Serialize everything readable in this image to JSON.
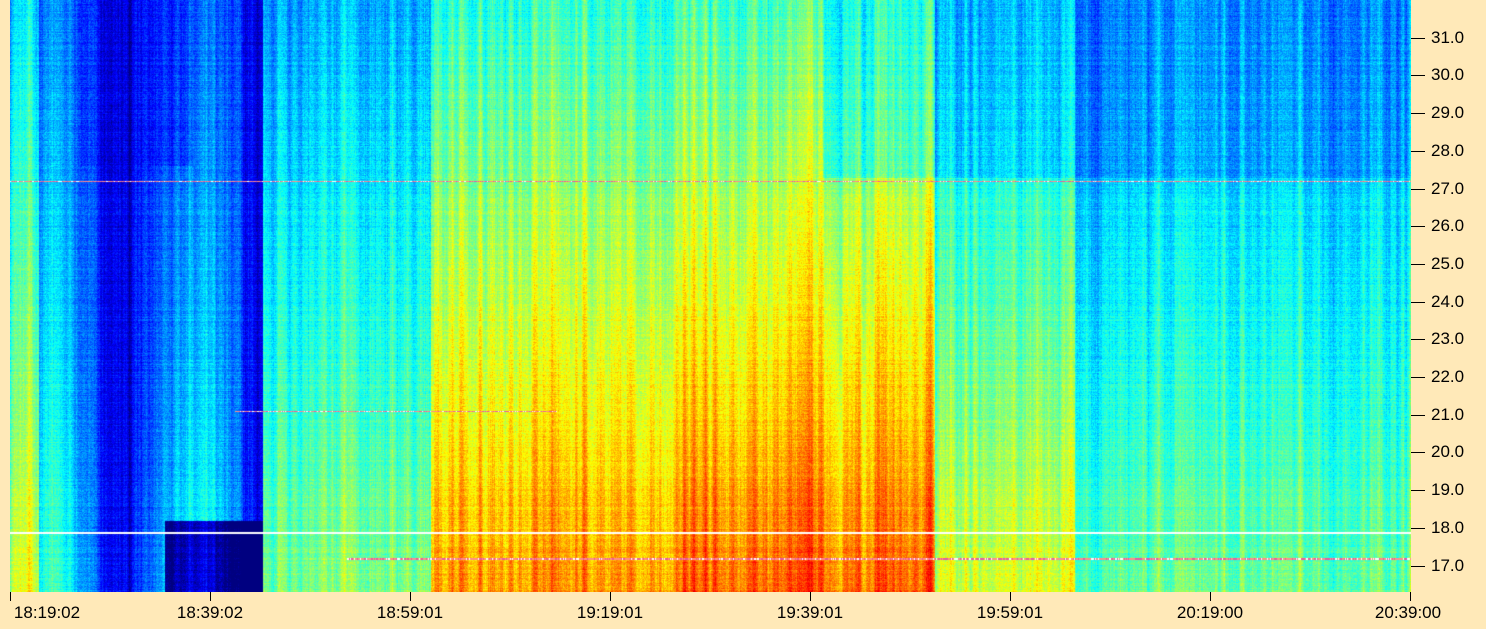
{
  "chart_data": {
    "type": "heatmap",
    "title": "",
    "xlabel": "",
    "ylabel": "",
    "x_ticks": [
      "18:19:02",
      "18:39:02",
      "18:59:01",
      "19:19:01",
      "19:39:01",
      "19:59:01",
      "20:19:00",
      "20:39:00"
    ],
    "y_ticks": [
      31.0,
      30.0,
      29.0,
      28.0,
      27.0,
      26.0,
      25.0,
      24.0,
      23.0,
      22.0,
      21.0,
      20.0,
      19.0,
      18.0,
      17.0
    ],
    "y_tick_labels": [
      "31.0",
      "30.0",
      "29.0",
      "28.0",
      "27.0",
      "26.0",
      "25.0",
      "24.0",
      "23.0",
      "22.0",
      "21.0",
      "20.0",
      "19.0",
      "18.0",
      "17.0"
    ],
    "ylim": [
      16.3,
      32.0
    ],
    "xlim": [
      "18:19:02",
      "20:39:00"
    ],
    "colormap": "jet",
    "background_color": "#ffe9b8",
    "interference_lines": [
      27.2,
      21.1,
      17.9,
      17.2
    ]
  }
}
